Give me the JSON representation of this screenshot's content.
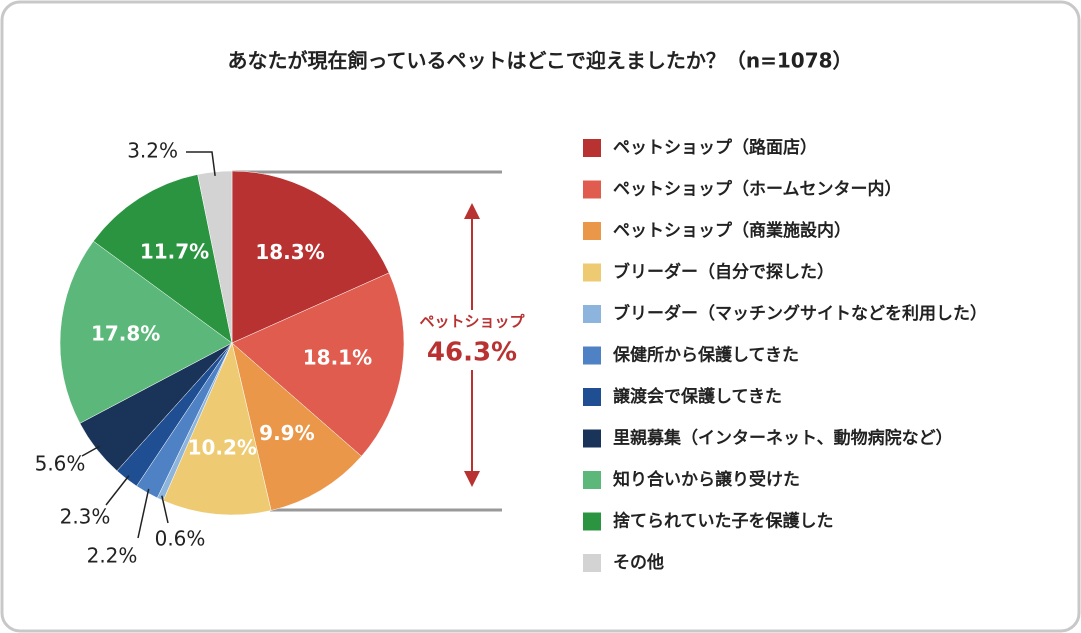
{
  "chart_data": {
    "type": "pie",
    "title": "あなたが現在飼っているペットはどこで迎えましたか？（n=1078）",
    "categories": [
      "ペットショップ（路面店）",
      "ペットショップ（ホームセンター内）",
      "ペットショップ（商業施設内）",
      "ブリーダー（自分で探した）",
      "ブリーダー（マッチングサイトなどを利用した）",
      "保健所から保護してきた",
      "譲渡会で保護してきた",
      "里親募集（インターネット、動物病院など）",
      "知り合いから譲り受けた",
      "捨てられていた子を保護した",
      "その他"
    ],
    "values": [
      18.3,
      18.1,
      9.9,
      10.2,
      0.6,
      2.2,
      2.3,
      5.6,
      17.8,
      11.7,
      3.2
    ],
    "value_labels": [
      "18.3%",
      "18.1%",
      "9.9%",
      "10.2%",
      "0.6%",
      "2.2%",
      "2.3%",
      "5.6%",
      "17.8%",
      "11.7%",
      "3.2%"
    ],
    "colors": [
      "#b93232",
      "#e05c4e",
      "#eb974a",
      "#eecb72",
      "#8db4dc",
      "#4f82c4",
      "#1f4e93",
      "#1a3358",
      "#5cb87a",
      "#2a9440",
      "#d3d3d3"
    ],
    "annotation": {
      "label": "ペットショップ",
      "value_label": "46.3%"
    }
  }
}
